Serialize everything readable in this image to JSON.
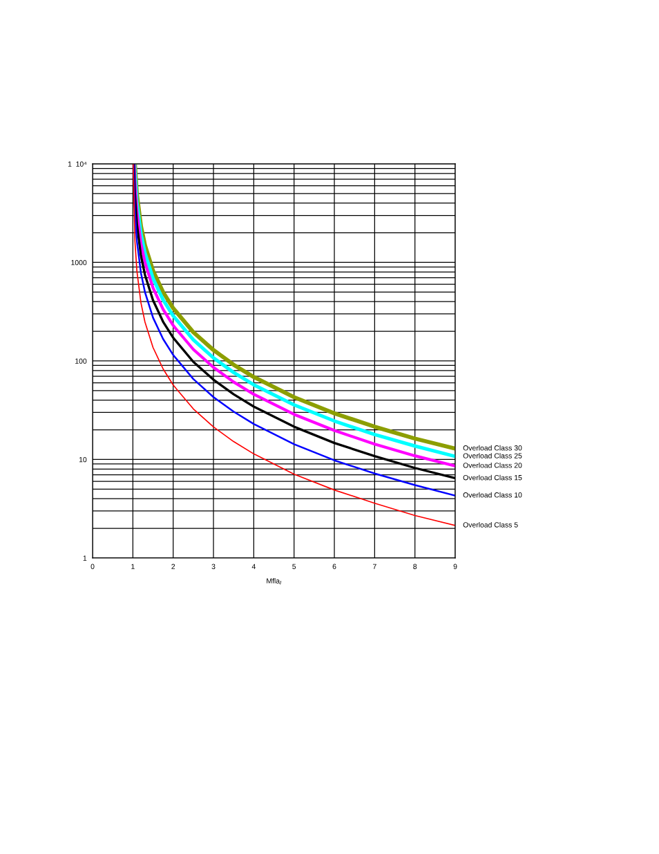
{
  "chart_data": {
    "type": "line",
    "xlabel": "Mfla$_{I}$",
    "log": "y",
    "grid": true,
    "legend": false,
    "marker": "none",
    "line_style": "solid",
    "xlim": [
      0,
      9
    ],
    "xticks": [
      0,
      1,
      2,
      3,
      4,
      5,
      6,
      7,
      8,
      9
    ],
    "ylim": [
      1,
      10000
    ],
    "yticks": [
      1,
      10,
      100,
      1000,
      {
        "value": 10000,
        "label": "1  10⁴"
      }
    ],
    "series": [
      {
        "name": "Overload Class 30",
        "color": "#8c9e00",
        "x": [
          1.05,
          1.1,
          1.2,
          1.3,
          1.5,
          1.75,
          2,
          2.5,
          3,
          3.5,
          4,
          5,
          6,
          7,
          8,
          9
        ],
        "values": [
          10000,
          4905,
          2341,
          1493,
          824,
          499,
          343,
          196,
          129,
          91.6,
          68.7,
          42.9,
          29.4,
          21.5,
          16.3,
          12.9
        ]
      },
      {
        "name": "Overload Class 25",
        "color": "#00ffff",
        "x": [
          1.042,
          1.05,
          1.1,
          1.2,
          1.3,
          1.5,
          1.75,
          2,
          2.5,
          3,
          3.5,
          4,
          5,
          6,
          7,
          8,
          9
        ],
        "values": [
          10000,
          8390,
          4095,
          1955,
          1246,
          688,
          417,
          287,
          164,
          107.5,
          76.4,
          57.3,
          35.8,
          24.6,
          17.9,
          13.7,
          10.75
        ]
      },
      {
        "name": "Overload Class 20",
        "color": "#ff00ff",
        "x": [
          1.034,
          1.05,
          1.1,
          1.2,
          1.3,
          1.5,
          1.75,
          2,
          2.5,
          3,
          3.5,
          4,
          5,
          6,
          7,
          8,
          9
        ],
        "values": [
          10000,
          6712,
          3276,
          1564,
          997,
          550,
          334,
          229,
          131,
          86,
          61.2,
          45.9,
          28.7,
          19.7,
          14.3,
          10.9,
          8.6
        ]
      },
      {
        "name": "Overload Class 15",
        "color": "#000000",
        "x": [
          1.025,
          1.05,
          1.1,
          1.2,
          1.3,
          1.5,
          1.75,
          2,
          2.5,
          3,
          3.5,
          4,
          5,
          6,
          7,
          8,
          9
        ],
        "values": [
          10000,
          5034,
          2457,
          1173,
          748,
          413,
          250,
          172,
          98,
          64.5,
          45.9,
          34.4,
          21.5,
          14.7,
          10.8,
          8.2,
          6.45
        ]
      },
      {
        "name": "Overload Class 10",
        "color": "#0000ff",
        "x": [
          1.017,
          1.05,
          1.1,
          1.2,
          1.3,
          1.5,
          1.75,
          2,
          2.5,
          3,
          3.5,
          4,
          5,
          6,
          7,
          8,
          9
        ],
        "values": [
          10000,
          3356,
          1638,
          782,
          499,
          275,
          167,
          115,
          65.5,
          43,
          30.6,
          22.9,
          14.3,
          9.8,
          7.2,
          5.5,
          4.3
        ]
      },
      {
        "name": "Overload Class 5",
        "color": "#ff0000",
        "x": [
          1.0085,
          1.05,
          1.1,
          1.2,
          1.3,
          1.5,
          1.75,
          2,
          2.5,
          3,
          3.5,
          4,
          5,
          6,
          7,
          8,
          9
        ],
        "values": [
          10000,
          1668,
          814,
          389,
          248,
          137,
          83,
          57,
          32.6,
          21.4,
          15.2,
          11.4,
          7.1,
          4.9,
          3.6,
          2.7,
          2.14
        ]
      }
    ]
  }
}
